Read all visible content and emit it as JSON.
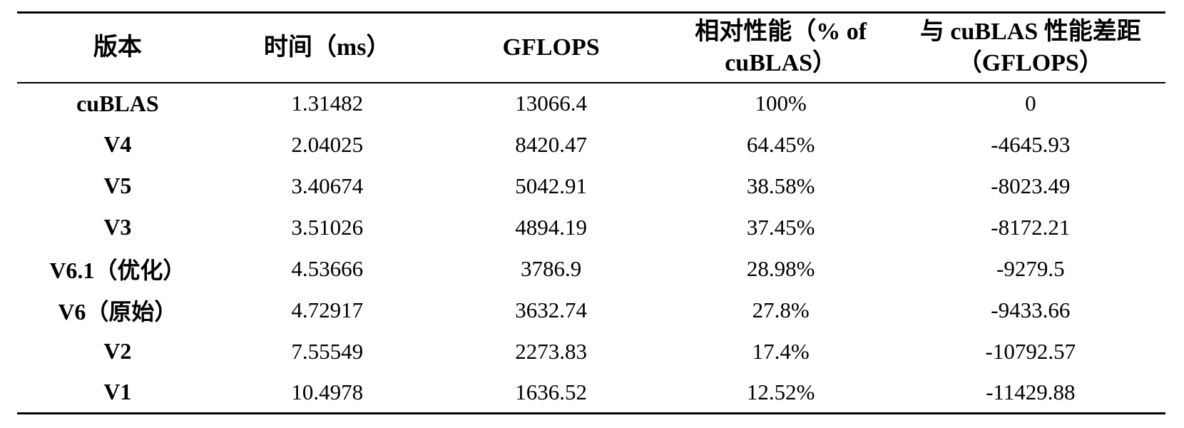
{
  "table": {
    "headers": [
      "版本",
      "时间（ms）",
      "GFLOPS",
      "相对性能（% of cuBLAS）",
      "与 cuBLAS 性能差距（GFLOPS）"
    ],
    "rows": [
      [
        "cuBLAS",
        "1.31482",
        "13066.4",
        "100%",
        "0"
      ],
      [
        "V4",
        "2.04025",
        "8420.47",
        "64.45%",
        "-4645.93"
      ],
      [
        "V5",
        "3.40674",
        "5042.91",
        "38.58%",
        "-8023.49"
      ],
      [
        "V3",
        "3.51026",
        "4894.19",
        "37.45%",
        "-8172.21"
      ],
      [
        "V6.1（优化）",
        "4.53666",
        "3786.9",
        "28.98%",
        "-9279.5"
      ],
      [
        "V6（原始）",
        "4.72917",
        "3632.74",
        "27.8%",
        "-9433.66"
      ],
      [
        "V2",
        "7.55549",
        "2273.83",
        "17.4%",
        "-10792.57"
      ],
      [
        "V1",
        "10.4978",
        "1636.52",
        "12.52%",
        "-11429.88"
      ]
    ]
  }
}
